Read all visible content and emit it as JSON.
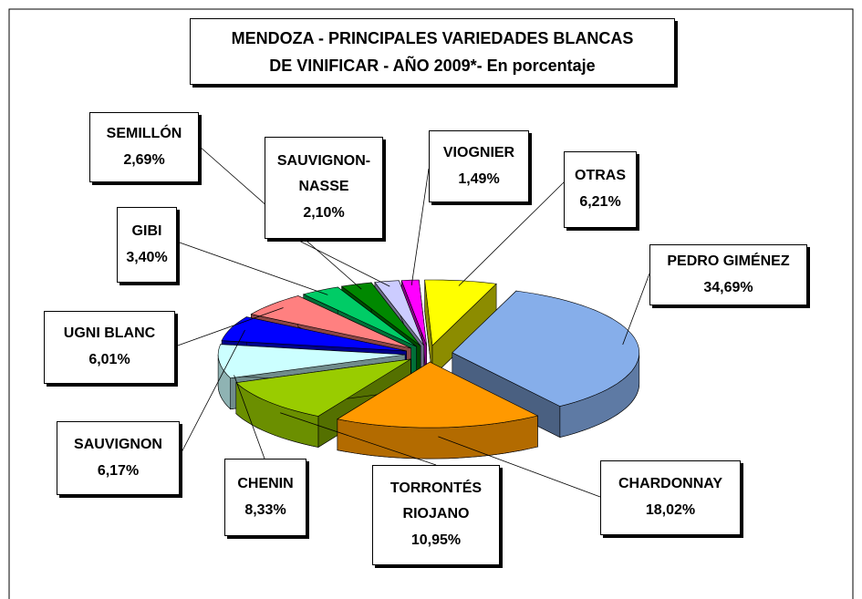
{
  "chart_data": {
    "type": "pie",
    "title": "MENDOZA - PRINCIPALES VARIEDADES BLANCAS DE VINIFICAR - AÑO 2009*- En porcentaje",
    "categories": [
      "PEDRO GIMÉNEZ",
      "CHARDONNAY",
      "TORRONTÉS RIOJANO",
      "CHENIN",
      "SAUVIGNON",
      "UGNI BLANC",
      "GIBI",
      "SEMILLÓN",
      "SAUVIGNON-NASSE",
      "VIOGNIER",
      "OTRAS"
    ],
    "values": [
      34.69,
      18.02,
      10.95,
      8.33,
      6.17,
      6.01,
      3.4,
      2.69,
      2.1,
      1.49,
      6.21
    ],
    "value_labels": [
      "34,69%",
      "18,02%",
      "10,95%",
      "8,33%",
      "6,17%",
      "6,01%",
      "3,40%",
      "2,69%",
      "2,10%",
      "1,49%",
      "6,21%"
    ],
    "colors": [
      "#86aeea",
      "#ff9900",
      "#99cc00",
      "#ccffff",
      "#0000ff",
      "#ff8080",
      "#00cc66",
      "#008800",
      "#ccccff",
      "#ff00ff",
      "#ffff00"
    ]
  }
}
